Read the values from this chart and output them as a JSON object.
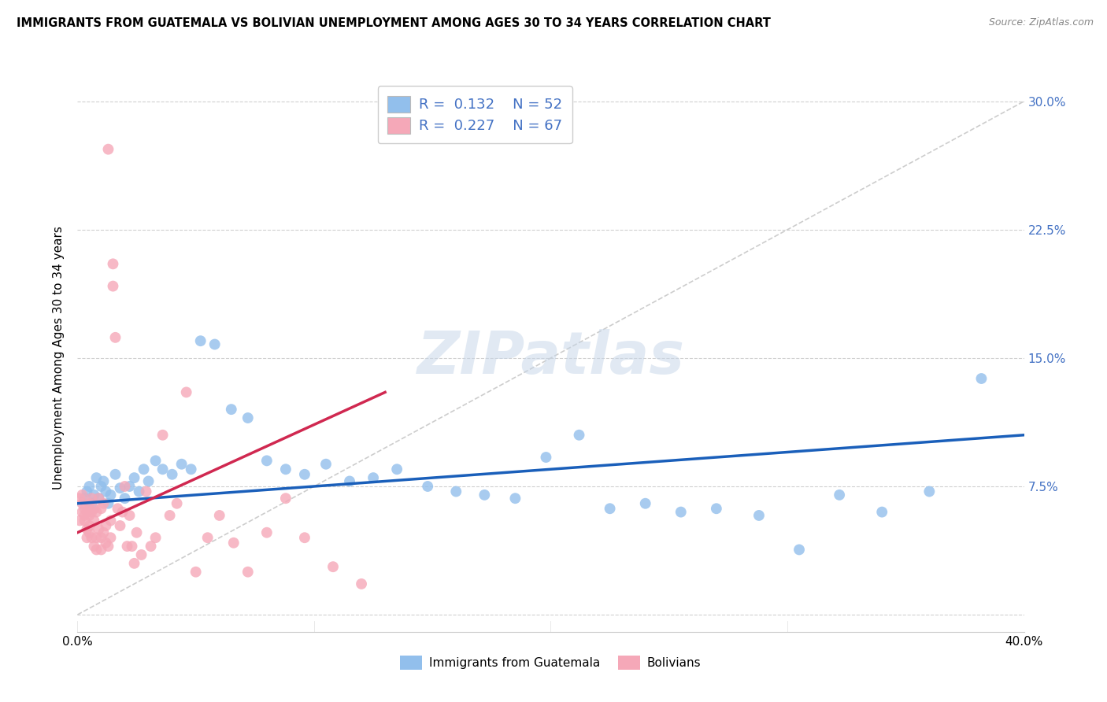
{
  "title": "IMMIGRANTS FROM GUATEMALA VS BOLIVIAN UNEMPLOYMENT AMONG AGES 30 TO 34 YEARS CORRELATION CHART",
  "source": "Source: ZipAtlas.com",
  "ylabel": "Unemployment Among Ages 30 to 34 years",
  "xlim": [
    0.0,
    0.4
  ],
  "ylim": [
    -0.01,
    0.31
  ],
  "ytick_vals": [
    0.0,
    0.075,
    0.15,
    0.225,
    0.3
  ],
  "ytick_labels": [
    "",
    "7.5%",
    "15.0%",
    "22.5%",
    "30.0%"
  ],
  "xtick_vals": [
    0.0,
    0.1,
    0.2,
    0.3,
    0.4
  ],
  "xtick_labels": [
    "0.0%",
    "",
    "",
    "",
    "40.0%"
  ],
  "legend_r1": "0.132",
  "legend_n1": "52",
  "legend_r2": "0.227",
  "legend_n2": "67",
  "series1_label": "Immigrants from Guatemala",
  "series2_label": "Bolivians",
  "series1_color": "#92bfec",
  "series2_color": "#f5a8b8",
  "trendline1_color": "#1a5fba",
  "trendline2_color": "#d02850",
  "refline_color": "#c8c8c8",
  "background_color": "#ffffff",
  "watermark": "ZIPatlas",
  "guatemala_x": [
    0.003,
    0.004,
    0.005,
    0.006,
    0.007,
    0.008,
    0.009,
    0.01,
    0.011,
    0.012,
    0.013,
    0.014,
    0.016,
    0.018,
    0.02,
    0.022,
    0.024,
    0.026,
    0.028,
    0.03,
    0.033,
    0.036,
    0.04,
    0.044,
    0.048,
    0.052,
    0.058,
    0.065,
    0.072,
    0.08,
    0.088,
    0.096,
    0.105,
    0.115,
    0.125,
    0.135,
    0.148,
    0.16,
    0.172,
    0.185,
    0.198,
    0.212,
    0.225,
    0.24,
    0.255,
    0.27,
    0.288,
    0.305,
    0.322,
    0.34,
    0.36,
    0.382
  ],
  "guatemala_y": [
    0.068,
    0.072,
    0.075,
    0.065,
    0.07,
    0.08,
    0.068,
    0.075,
    0.078,
    0.072,
    0.065,
    0.07,
    0.082,
    0.074,
    0.068,
    0.075,
    0.08,
    0.072,
    0.085,
    0.078,
    0.09,
    0.085,
    0.082,
    0.088,
    0.085,
    0.16,
    0.158,
    0.12,
    0.115,
    0.09,
    0.085,
    0.082,
    0.088,
    0.078,
    0.08,
    0.085,
    0.075,
    0.072,
    0.07,
    0.068,
    0.092,
    0.105,
    0.062,
    0.065,
    0.06,
    0.062,
    0.058,
    0.038,
    0.07,
    0.06,
    0.072,
    0.138
  ],
  "bolivian_x": [
    0.001,
    0.001,
    0.002,
    0.002,
    0.002,
    0.003,
    0.003,
    0.003,
    0.004,
    0.004,
    0.004,
    0.005,
    0.005,
    0.005,
    0.005,
    0.006,
    0.006,
    0.006,
    0.007,
    0.007,
    0.007,
    0.008,
    0.008,
    0.008,
    0.009,
    0.009,
    0.01,
    0.01,
    0.01,
    0.011,
    0.011,
    0.012,
    0.012,
    0.013,
    0.013,
    0.014,
    0.014,
    0.015,
    0.015,
    0.016,
    0.017,
    0.018,
    0.019,
    0.02,
    0.021,
    0.022,
    0.023,
    0.024,
    0.025,
    0.027,
    0.029,
    0.031,
    0.033,
    0.036,
    0.039,
    0.042,
    0.046,
    0.05,
    0.055,
    0.06,
    0.066,
    0.072,
    0.08,
    0.088,
    0.096,
    0.108,
    0.12
  ],
  "bolivian_y": [
    0.068,
    0.055,
    0.06,
    0.07,
    0.065,
    0.055,
    0.062,
    0.058,
    0.05,
    0.06,
    0.045,
    0.048,
    0.058,
    0.065,
    0.052,
    0.06,
    0.045,
    0.068,
    0.055,
    0.062,
    0.04,
    0.045,
    0.06,
    0.038,
    0.05,
    0.068,
    0.038,
    0.062,
    0.045,
    0.048,
    0.065,
    0.052,
    0.042,
    0.272,
    0.04,
    0.045,
    0.055,
    0.192,
    0.205,
    0.162,
    0.062,
    0.052,
    0.06,
    0.075,
    0.04,
    0.058,
    0.04,
    0.03,
    0.048,
    0.035,
    0.072,
    0.04,
    0.045,
    0.105,
    0.058,
    0.065,
    0.13,
    0.025,
    0.045,
    0.058,
    0.042,
    0.025,
    0.048,
    0.068,
    0.045,
    0.028,
    0.018
  ]
}
